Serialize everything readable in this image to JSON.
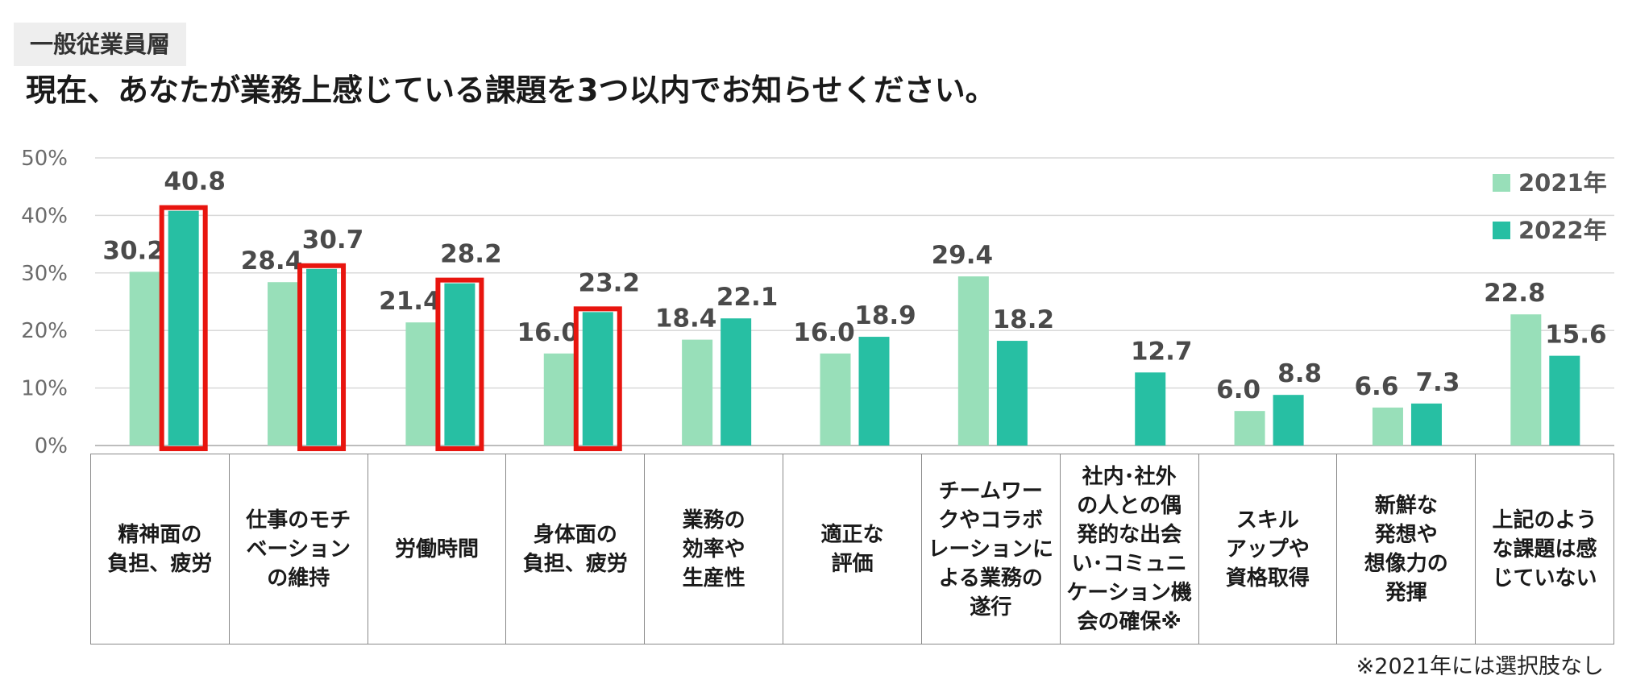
{
  "header": {
    "tag": "一般従業員層",
    "title": "現在、あなたが業務上感じている課題を3つ以内でお知らせください。"
  },
  "colors": {
    "y2021": "#98dfb9",
    "y2022": "#27bfa3",
    "highlight": "#e8150f",
    "grid": "#d9d9d9"
  },
  "chart_data": {
    "type": "bar",
    "title": "現在、あなたが業務上感じている課題を3つ以内でお知らせください。",
    "ylabel": "",
    "ylim": [
      0,
      50
    ],
    "yticks": [
      "0%",
      "10%",
      "20%",
      "30%",
      "40%",
      "50%"
    ],
    "legend_position": "top-right",
    "categories": [
      "精神面の\n負担、疲労",
      "仕事のモチ\nベーション\nの維持",
      "労働時間",
      "身体面の\n負担、疲労",
      "業務の\n効率や\n生産性",
      "適正な\n評価",
      "チームワー\nクやコラボ\nレーションに\nよる業務の\n遂行",
      "社内･社外\nの人との偶\n発的な出会\nい･コミュニ\nケーション機\n会の確保※",
      "スキル\nアップや\n資格取得",
      "新鮮な\n発想や\n想像力の\n発揮",
      "上記のよう\nな課題は感\nじていない"
    ],
    "series": [
      {
        "name": "2021年",
        "values": [
          30.2,
          28.4,
          21.4,
          16.0,
          18.4,
          16.0,
          29.4,
          null,
          6.0,
          6.6,
          22.8
        ],
        "labels": [
          "30.2",
          "28.4",
          "21.4",
          "16.0",
          "18.4",
          "16.0",
          "29.4",
          "",
          "6.0",
          "6.6",
          "22.8"
        ]
      },
      {
        "name": "2022年",
        "values": [
          40.8,
          30.7,
          28.2,
          23.2,
          22.1,
          18.9,
          18.2,
          12.7,
          8.8,
          7.3,
          15.6
        ],
        "labels": [
          "40.8",
          "30.7",
          "28.2",
          "23.2",
          "22.1",
          "18.9",
          "18.2",
          "12.7",
          "8.8",
          "7.3",
          "15.6"
        ]
      }
    ],
    "highlighted_2022": [
      0,
      1,
      2,
      3
    ]
  },
  "footnote": "※2021年には選択肢なし"
}
